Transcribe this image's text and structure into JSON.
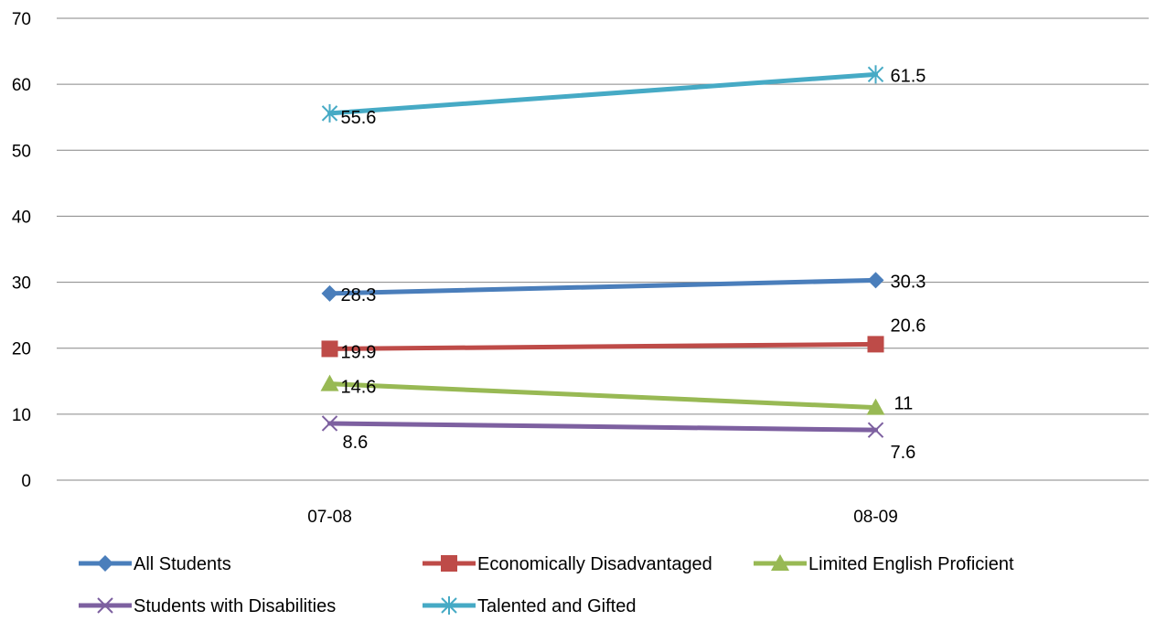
{
  "chart_data": {
    "type": "line",
    "title": "",
    "xlabel": "",
    "ylabel": "",
    "categories": [
      "07-08",
      "08-09"
    ],
    "ylim": [
      0,
      70
    ],
    "yticks": [
      "0",
      "10",
      "20",
      "30",
      "40",
      "50",
      "60",
      "70"
    ],
    "grid": true,
    "legend_position": "bottom",
    "series": [
      {
        "name": "All Students",
        "values": [
          28.3,
          30.3
        ],
        "labels": [
          "28.3",
          "30.3"
        ],
        "color": "#4a7ebb",
        "marker": "diamond"
      },
      {
        "name": "Economically Disadvantaged",
        "values": [
          19.9,
          20.6
        ],
        "labels": [
          "19.9",
          "20.6"
        ],
        "color": "#be4b48",
        "marker": "square"
      },
      {
        "name": "Limited English Proficient",
        "values": [
          14.6,
          11
        ],
        "labels": [
          "14.6",
          "11"
        ],
        "color": "#98b954",
        "marker": "triangle"
      },
      {
        "name": "Students with Disabilities",
        "values": [
          8.6,
          7.6
        ],
        "labels": [
          "8.6",
          "7.6"
        ],
        "color": "#7d60a0",
        "marker": "x"
      },
      {
        "name": "Talented and Gifted",
        "values": [
          55.6,
          61.5
        ],
        "labels": [
          "55.6",
          "61.5"
        ],
        "color": "#46aac5",
        "marker": "star"
      }
    ]
  }
}
